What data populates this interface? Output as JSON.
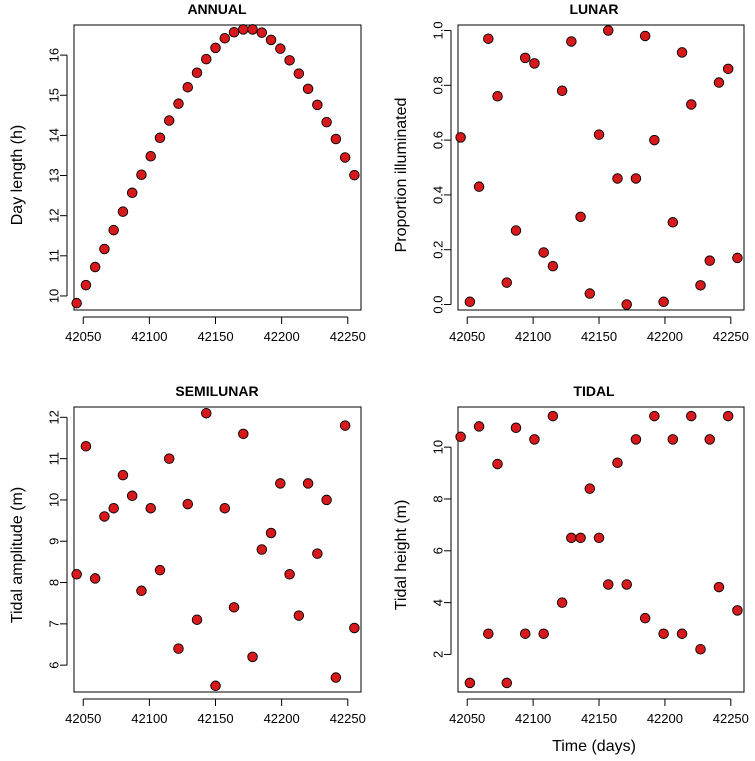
{
  "chart_data": [
    {
      "type": "scatter",
      "title": "ANNUAL",
      "xlabel": "",
      "ylabel": "Day length (h)",
      "xlim": [
        42043,
        42260
      ],
      "ylim": [
        9.65,
        16.75
      ],
      "xticks": [
        42050,
        42100,
        42150,
        42200,
        42250
      ],
      "yticks": [
        10,
        11,
        12,
        13,
        14,
        15,
        16
      ],
      "x": [
        42045,
        42052,
        42059,
        42066,
        42073,
        42080,
        42087,
        42094,
        42101,
        42108,
        42115,
        42122,
        42129,
        42136,
        42143,
        42150,
        42157,
        42164,
        42171,
        42178,
        42185,
        42192,
        42199,
        42206,
        42213,
        42220,
        42227,
        42234,
        42241,
        42248,
        42255
      ],
      "y": [
        9.82,
        10.27,
        10.72,
        11.17,
        11.64,
        12.1,
        12.57,
        13.02,
        13.48,
        13.94,
        14.37,
        14.79,
        15.2,
        15.56,
        15.9,
        16.18,
        16.42,
        16.57,
        16.64,
        16.64,
        16.56,
        16.38,
        16.16,
        15.87,
        15.54,
        15.16,
        14.76,
        14.33,
        13.91,
        13.45,
        13.01
      ],
      "grid": false
    },
    {
      "type": "scatter",
      "title": "LUNAR",
      "xlabel": "",
      "ylabel": "Proportion illuminated",
      "xlim": [
        42043,
        42260
      ],
      "ylim": [
        -0.02,
        1.02
      ],
      "xticks": [
        42050,
        42100,
        42150,
        42200,
        42250
      ],
      "yticks": [
        "0.0",
        "0.2",
        "0.4",
        "0.6",
        "0.8",
        "1.0"
      ],
      "x": [
        42045,
        42052,
        42059,
        42066,
        42073,
        42080,
        42087,
        42094,
        42101,
        42108,
        42115,
        42122,
        42129,
        42136,
        42143,
        42150,
        42157,
        42164,
        42171,
        42178,
        42185,
        42192,
        42199,
        42206,
        42213,
        42220,
        42227,
        42234,
        42241,
        42248,
        42255
      ],
      "y": [
        0.61,
        0.01,
        0.43,
        0.97,
        0.76,
        0.08,
        0.27,
        0.9,
        0.88,
        0.19,
        0.14,
        0.78,
        0.96,
        0.32,
        0.04,
        0.62,
        1.0,
        0.46,
        0.0,
        0.46,
        0.98,
        0.6,
        0.01,
        0.3,
        0.92,
        0.73,
        0.07,
        0.16,
        0.81,
        0.86,
        0.17
      ],
      "grid": false
    },
    {
      "type": "scatter",
      "title": "SEMILUNAR",
      "xlabel": "",
      "ylabel": "Tidal amplitude (m)",
      "xlim": [
        42043,
        42260
      ],
      "ylim": [
        5.35,
        12.25
      ],
      "xticks": [
        42050,
        42100,
        42150,
        42200,
        42250
      ],
      "yticks": [
        6,
        7,
        8,
        9,
        10,
        11,
        12
      ],
      "x": [
        42045,
        42052,
        42059,
        42066,
        42073,
        42080,
        42087,
        42094,
        42101,
        42108,
        42115,
        42122,
        42129,
        42136,
        42143,
        42150,
        42157,
        42164,
        42171,
        42178,
        42185,
        42192,
        42199,
        42206,
        42213,
        42220,
        42227,
        42234,
        42241,
        42248,
        42255
      ],
      "y": [
        8.2,
        11.3,
        8.1,
        9.6,
        9.8,
        10.6,
        10.1,
        7.8,
        9.8,
        8.3,
        11.0,
        6.4,
        9.9,
        7.1,
        12.1,
        5.5,
        9.8,
        7.4,
        11.6,
        6.2,
        8.8,
        9.2,
        10.4,
        8.2,
        7.2,
        10.4,
        8.7,
        10.0,
        5.7,
        11.8,
        6.9
      ],
      "grid": false
    },
    {
      "type": "scatter",
      "title": "TIDAL",
      "xlabel": "Time (days)",
      "ylabel": "Tidal height (m)",
      "xlim": [
        42043,
        42260
      ],
      "ylim": [
        0.55,
        11.55
      ],
      "xticks": [
        42050,
        42100,
        42150,
        42200,
        42250
      ],
      "yticks": [
        2,
        4,
        6,
        8,
        10
      ],
      "x": [
        42045,
        42052,
        42059,
        42066,
        42073,
        42080,
        42087,
        42094,
        42101,
        42108,
        42115,
        42122,
        42129,
        42136,
        42143,
        42150,
        42157,
        42164,
        42171,
        42178,
        42185,
        42192,
        42199,
        42206,
        42213,
        42220,
        42227,
        42234,
        42241,
        42248,
        42255
      ],
      "y": [
        10.4,
        0.9,
        10.8,
        2.8,
        9.35,
        0.9,
        10.75,
        2.8,
        10.3,
        2.8,
        11.2,
        4.0,
        6.5,
        6.5,
        8.4,
        6.5,
        4.7,
        9.4,
        4.7,
        10.3,
        3.4,
        11.2,
        2.8,
        10.3,
        2.8,
        11.2,
        2.2,
        10.3,
        4.6,
        11.2,
        3.7
      ],
      "grid": false
    }
  ]
}
